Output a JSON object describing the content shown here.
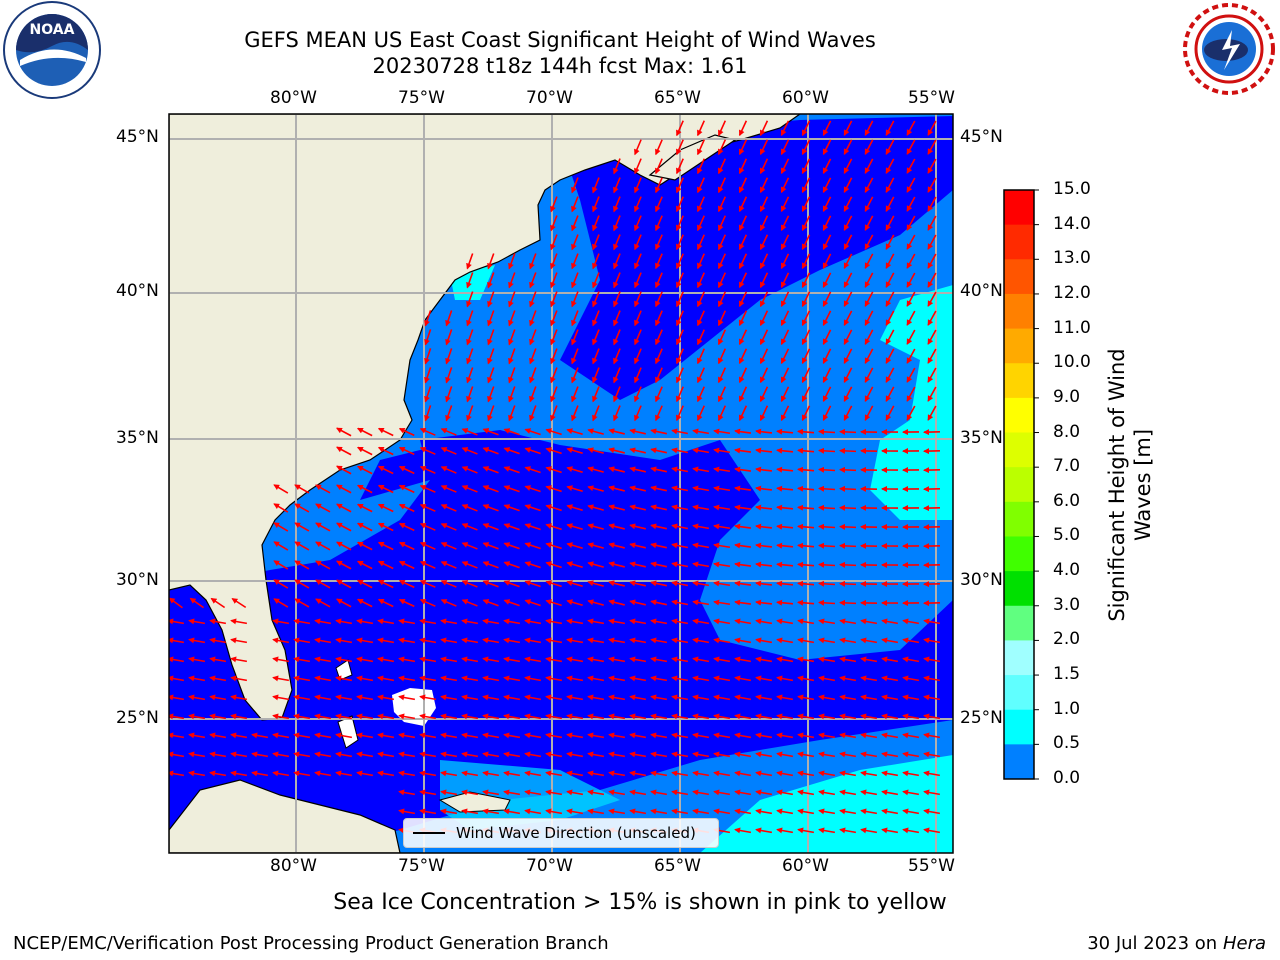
{
  "title": {
    "line1": "GEFS MEAN US East Coast Significant Height of Wind Waves",
    "line2": "20230728 t18z 144h fcst   Max: 1.61"
  },
  "map": {
    "lon_labels": [
      "80°W",
      "75°W",
      "70°W",
      "65°W",
      "60°W",
      "55°W"
    ],
    "lat_labels": [
      "45°N",
      "40°N",
      "35°N",
      "30°N",
      "25°N"
    ],
    "colors": {
      "land": "#efeedc",
      "level_0": "#0000ff",
      "level_05": "#0080ff",
      "level_1": "#00ffff",
      "arrow": "#ff0000",
      "grid": "#b0b0b0"
    },
    "legend_label": "Wind Wave Direction (unscaled)"
  },
  "colorbar": {
    "ticks": [
      "15.0",
      "14.0",
      "13.0",
      "12.0",
      "11.0",
      "10.0",
      "9.0",
      "8.0",
      "7.0",
      "6.0",
      "5.0",
      "4.0",
      "3.0",
      "2.0",
      "1.5",
      "1.0",
      "0.5",
      "0.0"
    ],
    "colors": [
      "#ff0000",
      "#ff2a00",
      "#ff5500",
      "#ff8000",
      "#ffaa00",
      "#ffd400",
      "#ffff00",
      "#ddff00",
      "#bbff00",
      "#80ff00",
      "#40ff00",
      "#00e000",
      "#60ff80",
      "#a0ffff",
      "#60ffff",
      "#00ffff",
      "#0080ff",
      "#0000ff"
    ],
    "label_line1": "Significant Height of Wind",
    "label_line2": "Waves [m]"
  },
  "note": "Sea Ice Concentration > 15% is shown in pink to yellow",
  "footer": {
    "left": "NCEP/EMC/Verification Post Processing Product Generation Branch",
    "date": "30 Jul 2023 on ",
    "machine": "Hera"
  },
  "logos": {
    "left_text": "NOAA",
    "right_text": "NATIONAL WEATHER SERVICE"
  }
}
